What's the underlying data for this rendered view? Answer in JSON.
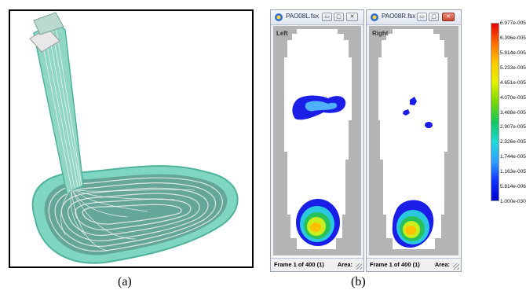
{
  "captions": {
    "a": "(a)",
    "b": "(b)"
  },
  "windows": [
    {
      "title": "PAO08L.fsx",
      "foot_label": "Left",
      "status_frame": "Frame 1 of 400 (1)",
      "status_area": "Area:"
    },
    {
      "title": "PAO08R.fsx",
      "foot_label": "Right",
      "status_frame": "Frame 1 of 400 (1)",
      "status_area": "Area:"
    }
  ],
  "window_buttons": {
    "minimize": "▭",
    "maximize": "▢",
    "close": "✕"
  },
  "scale": {
    "ticks": [
      "6.977e-005",
      "6.396e-005",
      "5.814e-005",
      "5.233e-005",
      "4.651e-005",
      "4.070e-005",
      "3.488e-005",
      "2.907e-005",
      "2.326e-005",
      "1.744e-005",
      "1.163e-005",
      "5.814e-006",
      "1.000e-030"
    ],
    "colors": [
      "#e60000",
      "#ff6a00",
      "#ffc800",
      "#e5f000",
      "#7cd800",
      "#10c860",
      "#20d8d8",
      "#30a0ff",
      "#1030ff",
      "#0000c8"
    ]
  },
  "icons": {
    "app": "pressure-app-icon",
    "grip": "resize-grip-icon"
  }
}
